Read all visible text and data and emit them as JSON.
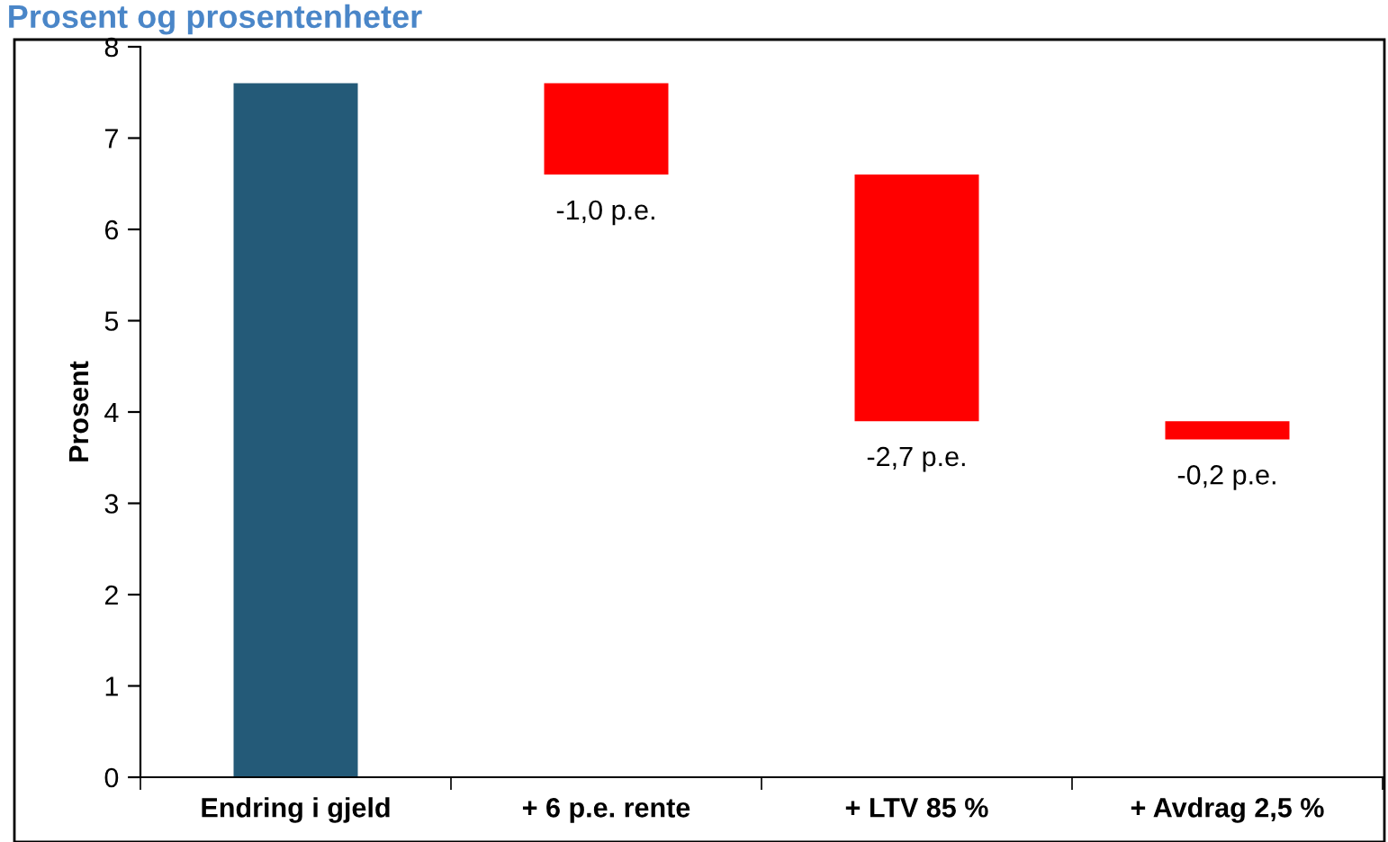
{
  "chart_data": {
    "type": "bar",
    "title": "Prosent og prosentenheter",
    "ylabel": "Prosent",
    "categories": [
      "Endring i gjeld",
      "+ 6 p.e. rente",
      "+ LTV 85 %",
      "+ Avdrag 2,5 %"
    ],
    "values": [
      7.6,
      -1.0,
      -2.7,
      -0.2
    ],
    "base": [
      0,
      7.6,
      6.6,
      3.9
    ],
    "colors": [
      "#245a78",
      "#ff0000",
      "#ff0000",
      "#ff0000"
    ],
    "value_labels": [
      null,
      "-1,0 p.e.",
      "-2,7 p.e.",
      "-0,2 p.e."
    ],
    "ylim": [
      0,
      8
    ],
    "yticks": [
      0,
      1,
      2,
      3,
      4,
      5,
      6,
      7,
      8
    ],
    "grid": false,
    "legend": false
  }
}
